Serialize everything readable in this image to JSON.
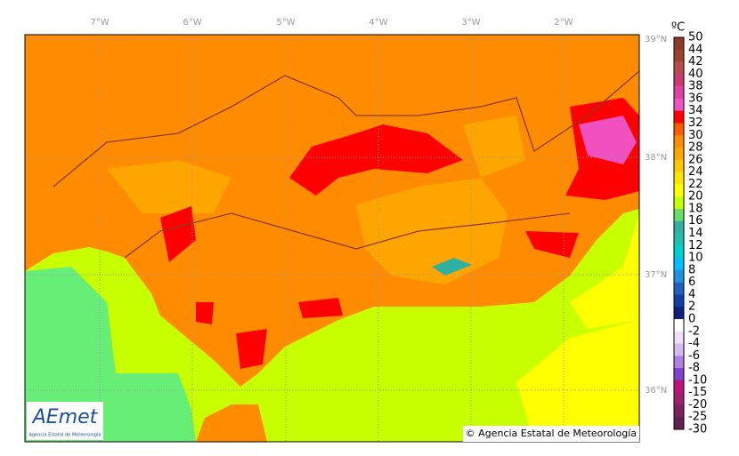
{
  "map": {
    "lon_labels": [
      "7°W",
      "6°W",
      "5°W",
      "4°W",
      "3°W",
      "2°W"
    ],
    "lat_labels": [
      "39°N",
      "38°N",
      "37°N",
      "36°N"
    ],
    "copyright": "© Agencia Estatal de Meteorología",
    "logo": {
      "name": "AEmet",
      "subtitle": "Agencia Estatal de Meteorología"
    }
  },
  "legend": {
    "unit": "ºC",
    "levels": [
      50,
      44,
      42,
      40,
      38,
      36,
      34,
      32,
      30,
      28,
      26,
      24,
      22,
      20,
      18,
      16,
      14,
      12,
      10,
      8,
      6,
      4,
      2,
      0,
      -2,
      -4,
      -6,
      -8,
      -10,
      -15,
      -20,
      -25,
      -30
    ],
    "colors": [
      "#8b3a2a",
      "#a0402f",
      "#b84a50",
      "#c83a70",
      "#e040a0",
      "#f050c0",
      "#ff0000",
      "#ff5a00",
      "#ff8c00",
      "#ffa500",
      "#ffc800",
      "#ffe600",
      "#ffff00",
      "#c8ff00",
      "#66dd66",
      "#30b0a0",
      "#20c0b0",
      "#00d0d0",
      "#00c0ff",
      "#2090e0",
      "#2060c0",
      "#1040a0",
      "#102080",
      "#ffffff",
      "#f0e0f8",
      "#d8b8f0",
      "#b080e0",
      "#8040d0",
      "#c01080",
      "#a02070",
      "#802060",
      "#602050"
    ]
  }
}
